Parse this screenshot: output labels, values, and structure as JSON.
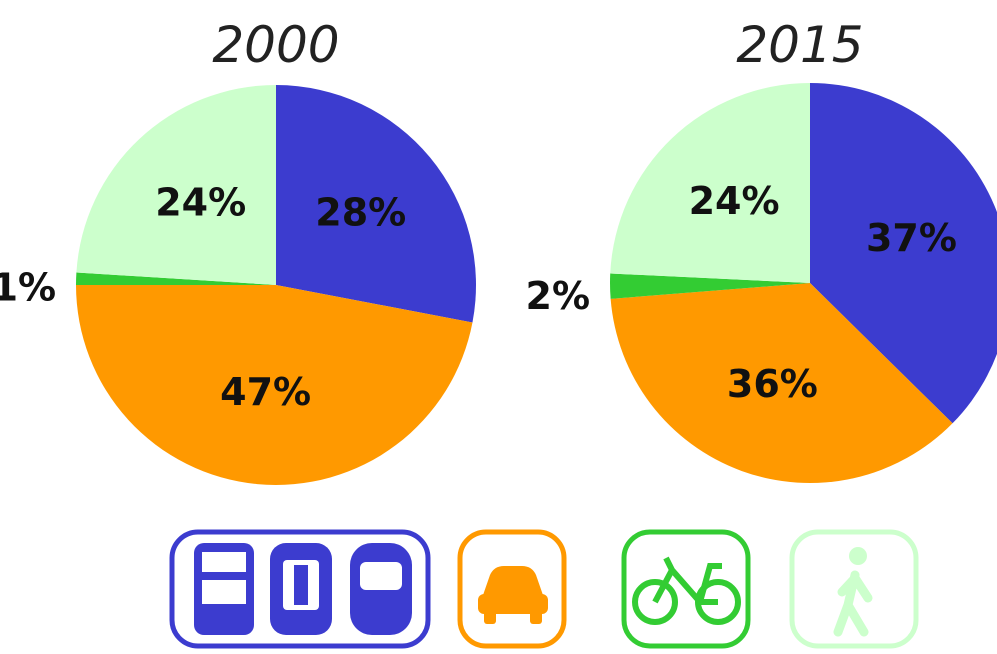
{
  "chart_data": [
    {
      "type": "pie",
      "title": "2000",
      "values": [
        28,
        47,
        1,
        24
      ],
      "value_labels": [
        "28%",
        "47%",
        "1%",
        "24%"
      ],
      "colors": [
        "#3c3ccf",
        "#ff9900",
        "#33cc33",
        "#ccffcc"
      ]
    },
    {
      "type": "pie",
      "title": "2015",
      "values": [
        37,
        36,
        2,
        24
      ],
      "value_labels": [
        "37%",
        "36%",
        "2%",
        "24%"
      ],
      "colors": [
        "#3c3ccf",
        "#ff9900",
        "#33cc33",
        "#ccffcc"
      ]
    }
  ]
}
